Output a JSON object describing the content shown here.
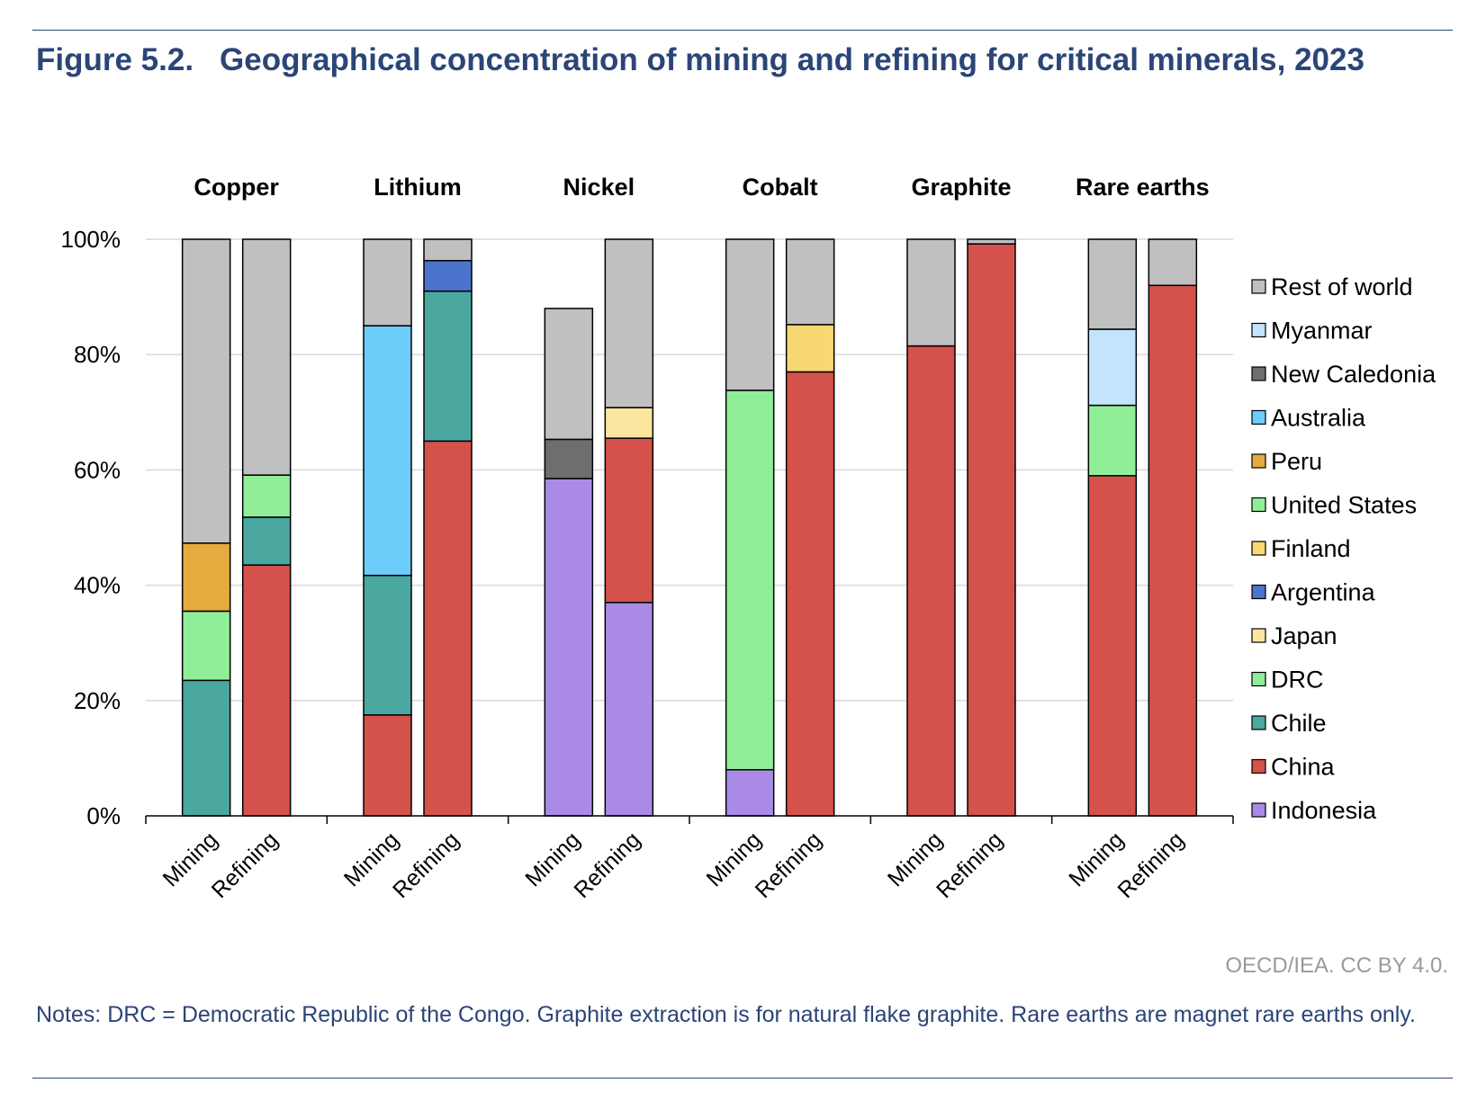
{
  "figure": {
    "label": "Figure 5.2.",
    "title": "Geographical concentration of mining and refining for critical minerals, 2023",
    "credit": "OECD/IEA. CC BY 4.0.",
    "notes": "Notes: DRC = Democratic Republic of the Congo. Graphite extraction is for natural flake graphite. Rare earths are magnet rare earths only."
  },
  "chart_data": {
    "type": "bar",
    "stacked": true,
    "ylim": [
      0,
      100
    ],
    "yticks": [
      "0%",
      "20%",
      "40%",
      "60%",
      "80%",
      "100%"
    ],
    "ytick_values": [
      0,
      20,
      40,
      60,
      80,
      100
    ],
    "grid": true,
    "legend_position": "right",
    "groups": [
      "Copper",
      "Lithium",
      "Nickel",
      "Cobalt",
      "Graphite",
      "Rare earths"
    ],
    "bar_labels": [
      "Mining",
      "Refining"
    ],
    "series": [
      {
        "name": "Indonesia",
        "color": "#a98be7",
        "values": [
          0,
          0,
          0,
          0,
          58.5,
          37,
          8,
          0,
          0,
          0,
          0,
          0
        ]
      },
      {
        "name": "China",
        "color": "#d4524b",
        "values": [
          0,
          43.5,
          17.5,
          65,
          0,
          28.5,
          0,
          77,
          81.5,
          99.2,
          59,
          92
        ]
      },
      {
        "name": "Chile",
        "color": "#4aa8a0",
        "values": [
          23.5,
          8.3,
          24.2,
          26,
          0,
          0,
          0,
          0,
          0,
          0,
          0,
          0
        ]
      },
      {
        "name": "DRC",
        "color": "#90ee98",
        "values": [
          0,
          0,
          0,
          0,
          0,
          0,
          65.8,
          0,
          0,
          0,
          0,
          0
        ]
      },
      {
        "name": "Japan",
        "color": "#fbe6a0",
        "values": [
          0,
          0,
          0,
          0,
          0,
          5.3,
          0,
          0,
          0,
          0,
          0,
          0
        ]
      },
      {
        "name": "Argentina",
        "color": "#4b74cc",
        "values": [
          0,
          0,
          0,
          5.3,
          0,
          0,
          0,
          0,
          0,
          0,
          0,
          0
        ]
      },
      {
        "name": "Finland",
        "color": "#f8d873",
        "values": [
          0,
          0,
          0,
          0,
          0,
          0,
          0,
          8.2,
          0,
          0,
          0,
          0
        ]
      },
      {
        "name": "United States",
        "color": "#90ee98",
        "values": [
          12,
          7.3,
          0,
          0,
          0,
          0,
          0,
          0,
          0,
          0,
          12.2,
          0
        ]
      },
      {
        "name": "Peru",
        "color": "#e6ab3e",
        "values": [
          11.8,
          0,
          0,
          0,
          0,
          0,
          0,
          0,
          0,
          0,
          0,
          0
        ]
      },
      {
        "name": "Australia",
        "color": "#6ccdfa",
        "values": [
          0,
          0,
          43.3,
          0,
          0,
          0,
          0,
          0,
          0,
          0,
          0,
          0
        ]
      },
      {
        "name": "New Caledonia",
        "color": "#6e6e6e",
        "values": [
          0,
          0,
          0,
          0,
          6.8,
          0,
          0,
          0,
          0,
          0,
          0,
          0
        ]
      },
      {
        "name": "Myanmar",
        "color": "#c2e5fb",
        "values": [
          0,
          0,
          0,
          0,
          0,
          0,
          0,
          0,
          0,
          0,
          13.2,
          0
        ]
      },
      {
        "name": "Rest of world",
        "color": "#c0c0c0",
        "values": [
          52.7,
          40.9,
          15,
          3.7,
          22.7,
          29.2,
          26.2,
          14.8,
          18.5,
          0.8,
          15.6,
          8
        ]
      }
    ],
    "legend_order": [
      "Rest of world",
      "Myanmar",
      "New Caledonia",
      "Australia",
      "Peru",
      "United States",
      "Finland",
      "Argentina",
      "Japan",
      "DRC",
      "Chile",
      "China",
      "Indonesia"
    ]
  }
}
